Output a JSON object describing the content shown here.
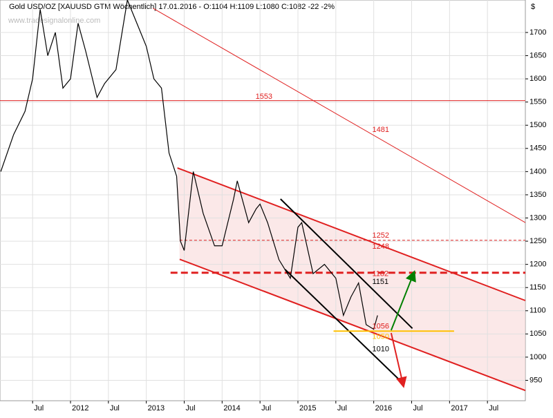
{
  "chart_data": {
    "type": "line",
    "title": "Gold USD/OZ [XAUUSD GTM  Wöchentlich] 17.01.2016 - O:1104 H:1109 L:1080 C:1082 -22 -2%",
    "watermark": "www.tradesignalonline.com",
    "currency": "$",
    "xlim": [
      2011.07,
      2018.0
    ],
    "ylim": [
      906,
      1770
    ],
    "xticks": [
      {
        "value": 2011.5,
        "label": "Jul"
      },
      {
        "value": 2012,
        "label": "2012"
      },
      {
        "value": 2012.5,
        "label": "Jul"
      },
      {
        "value": 2013,
        "label": "2013"
      },
      {
        "value": 2013.5,
        "label": "Jul"
      },
      {
        "value": 2014,
        "label": "2014"
      },
      {
        "value": 2014.5,
        "label": "Jul"
      },
      {
        "value": 2015,
        "label": "2015"
      },
      {
        "value": 2015.5,
        "label": "Jul"
      },
      {
        "value": 2016,
        "label": "2016"
      },
      {
        "value": 2016.5,
        "label": "Jul"
      },
      {
        "value": 2017,
        "label": "2017"
      },
      {
        "value": 2017.5,
        "label": "Jul"
      }
    ],
    "yticks": [
      950,
      1000,
      1050,
      1100,
      1150,
      1200,
      1250,
      1300,
      1350,
      1400,
      1450,
      1500,
      1550,
      1600,
      1650,
      1700
    ],
    "grid": true,
    "series": [
      {
        "name": "XAUUSD",
        "color": "#000000",
        "x": [
          2011.08,
          2011.25,
          2011.4,
          2011.5,
          2011.6,
          2011.7,
          2011.8,
          2011.9,
          2012.0,
          2012.1,
          2012.2,
          2012.35,
          2012.45,
          2012.6,
          2012.75,
          2012.9,
          2013.0,
          2013.1,
          2013.2,
          2013.3,
          2013.4,
          2013.45,
          2013.5,
          2013.62,
          2013.75,
          2013.9,
          2014.0,
          2014.15,
          2014.2,
          2014.35,
          2014.45,
          2014.5,
          2014.6,
          2014.75,
          2014.9,
          2015.0,
          2015.05,
          2015.2,
          2015.35,
          2015.5,
          2015.6,
          2015.7,
          2015.8,
          2015.9,
          2016.0,
          2016.05
        ],
        "values": [
          1400,
          1480,
          1530,
          1600,
          1750,
          1650,
          1700,
          1580,
          1600,
          1720,
          1660,
          1560,
          1590,
          1620,
          1770,
          1710,
          1670,
          1600,
          1580,
          1440,
          1390,
          1250,
          1230,
          1400,
          1310,
          1240,
          1240,
          1340,
          1380,
          1290,
          1320,
          1330,
          1290,
          1210,
          1170,
          1280,
          1290,
          1180,
          1200,
          1170,
          1090,
          1130,
          1160,
          1070,
          1060,
          1090
        ]
      }
    ],
    "lines": [
      {
        "x1": 2011.07,
        "y1": 1553,
        "x2": 2018.0,
        "y2": 1553,
        "color": "#e02020"
      },
      {
        "x1": 2013.09,
        "y1": 1752,
        "x2": 2018.0,
        "y2": 1290,
        "color": "#e02020"
      },
      {
        "x1": 2013.41,
        "y1": 1408,
        "x2": 2018.0,
        "y2": 1122,
        "color": "#e02020"
      },
      {
        "x1": 2013.44,
        "y1": 1211,
        "x2": 2018.0,
        "y2": 928,
        "color": "#e02020"
      },
      {
        "x1": 2013.44,
        "y1": 1252,
        "x2": 2018.0,
        "y2": 1252,
        "color": "#e02020"
      },
      {
        "x1": 2013.32,
        "y1": 1182,
        "x2": 2018.0,
        "y2": 1182,
        "color": "#e02020"
      },
      {
        "x1": 2014.77,
        "y1": 1341,
        "x2": 2016.51,
        "y2": 1062,
        "color": "#000000"
      },
      {
        "x1": 2014.83,
        "y1": 1189,
        "x2": 2016.37,
        "y2": 946,
        "color": "#000000"
      },
      {
        "x1": 2015.47,
        "y1": 1056,
        "x2": 2017.06,
        "y2": 1056,
        "color": "#ffc000"
      },
      {
        "x1": 2016.23,
        "y1": 1058,
        "x2": 2016.53,
        "y2": 1182,
        "color": "#008000"
      },
      {
        "x1": 2016.23,
        "y1": 1052,
        "x2": 2016.39,
        "y2": 939,
        "color": "#e02020"
      }
    ],
    "annotations": [
      {
        "text": "1553",
        "x": 2014.44,
        "y": 1561,
        "color": "#e02020"
      },
      {
        "text": "1481",
        "x": 2015.98,
        "y": 1490,
        "color": "#e02020"
      },
      {
        "text": "1252",
        "x": 2015.98,
        "y": 1262,
        "color": "#e02020"
      },
      {
        "text": "1248",
        "x": 2015.98,
        "y": 1238,
        "color": "#e02020"
      },
      {
        "text": "1182",
        "x": 2015.98,
        "y": 1179,
        "color": "#e02020"
      },
      {
        "text": "1151",
        "x": 2015.98,
        "y": 1162,
        "color": "#000000"
      },
      {
        "text": "1056",
        "x": 2015.98,
        "y": 1066,
        "color": "#e02020"
      },
      {
        "text": "1050",
        "x": 2015.98,
        "y": 1044,
        "color": "#ffc000"
      },
      {
        "text": "1010",
        "x": 2015.98,
        "y": 1017,
        "color": "#000000"
      }
    ]
  }
}
